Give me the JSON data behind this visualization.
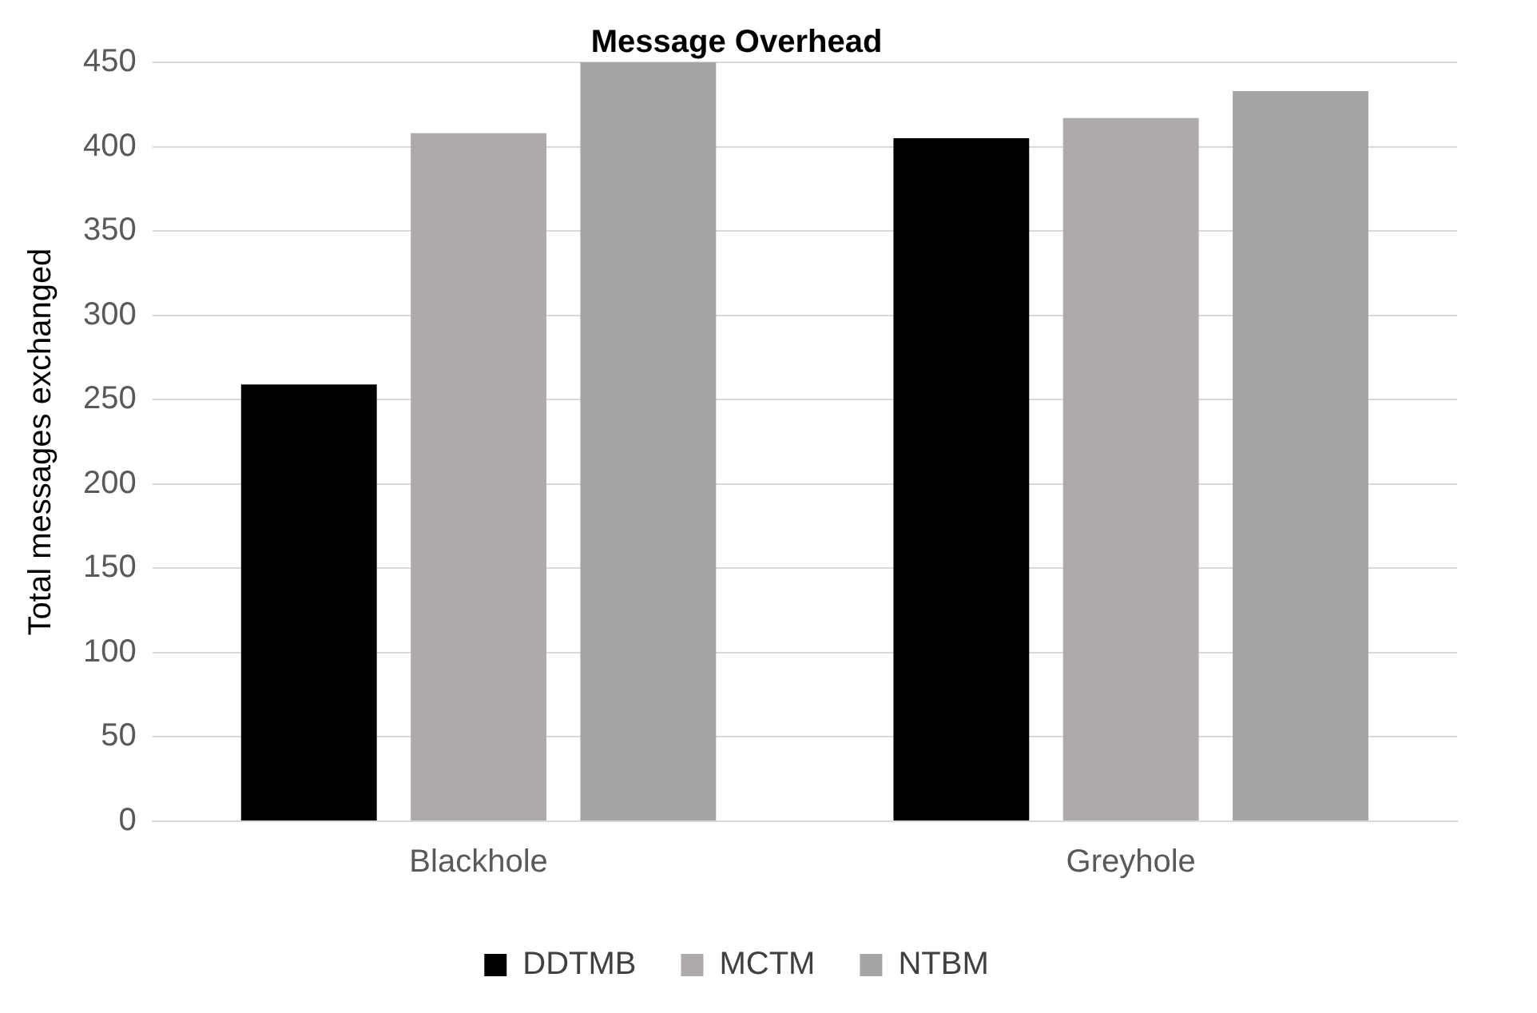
{
  "chart_data": {
    "type": "bar",
    "title": "Message Overhead",
    "ylabel": "Total messages exchanged",
    "categories": [
      "Blackhole",
      "Greyhole"
    ],
    "series": [
      {
        "name": "DDTMB",
        "color": "#000000",
        "values": [
          259,
          405
        ]
      },
      {
        "name": "MCTM",
        "color": "#aeaaaa",
        "values": [
          408,
          417
        ]
      },
      {
        "name": "NTBM",
        "color": "#a5a5a5",
        "values": [
          450,
          433
        ]
      }
    ],
    "ylim": [
      0,
      450
    ],
    "yticks": [
      0,
      50,
      100,
      150,
      200,
      250,
      300,
      350,
      400,
      450
    ],
    "grid": "y",
    "legend": "bottom"
  }
}
